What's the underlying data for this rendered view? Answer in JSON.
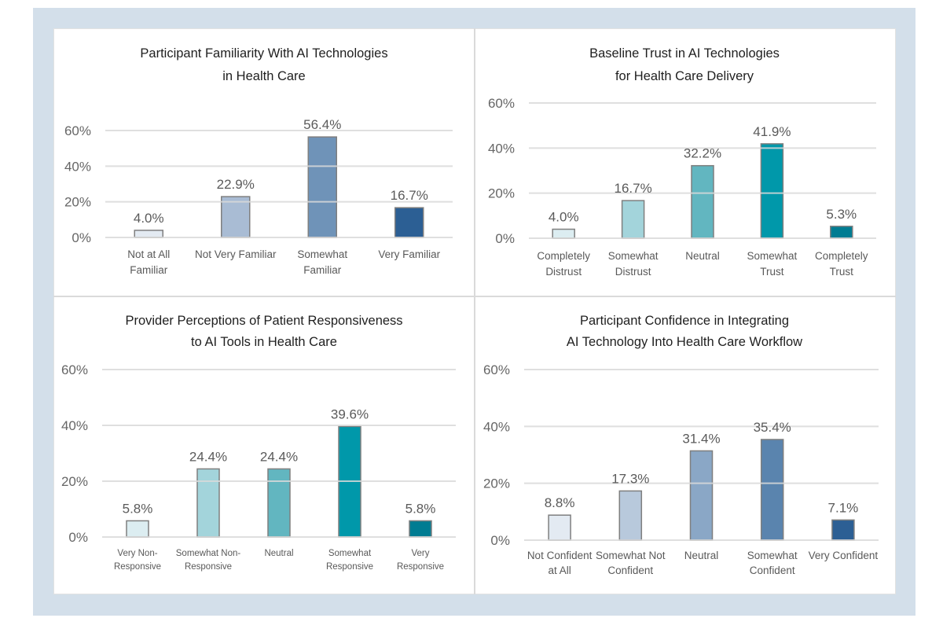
{
  "chart_data": [
    {
      "type": "bar",
      "title": [
        "Participant Familiarity With AI Technologies",
        "in Health Care"
      ],
      "categories": [
        [
          "Not at All",
          "Familiar"
        ],
        [
          "Not Very Familiar"
        ],
        [
          "Somewhat",
          "Familiar"
        ],
        [
          "Very Familiar"
        ]
      ],
      "values": [
        4.0,
        22.9,
        56.4,
        16.7
      ],
      "data_labels": [
        "4.0%",
        "22.9%",
        "56.4%",
        "16.7%"
      ],
      "colors": [
        "#e3eaf2",
        "#a9bcd4",
        "#6f93b8",
        "#2c5f94"
      ],
      "yticks": [
        "0%",
        "20%",
        "40%",
        "60%"
      ],
      "ylim": [
        0,
        60
      ],
      "xlabel": "",
      "ylabel": "",
      "grid": true,
      "legend": "none"
    },
    {
      "type": "bar",
      "title": [
        "Baseline Trust in AI Technologies",
        "for Health Care Delivery"
      ],
      "categories": [
        [
          "Completely",
          "Distrust"
        ],
        [
          "Somewhat",
          "Distrust"
        ],
        [
          "Neutral"
        ],
        [
          "Somewhat",
          "Trust"
        ],
        [
          "Completely",
          "Trust"
        ]
      ],
      "values": [
        4.0,
        16.7,
        32.2,
        41.9,
        5.3
      ],
      "data_labels": [
        "4.0%",
        "16.7%",
        "32.2%",
        "41.9%",
        "5.3%"
      ],
      "colors": [
        "#dcedf1",
        "#a3d4db",
        "#62b6c0",
        "#0098aa",
        "#007c92"
      ],
      "yticks": [
        "0%",
        "20%",
        "40%",
        "60%"
      ],
      "ylim": [
        0,
        60
      ],
      "xlabel": "",
      "ylabel": "",
      "grid": true,
      "legend": "none"
    },
    {
      "type": "bar",
      "title": [
        "Provider Perceptions of Patient Responsiveness",
        "to AI Tools in Health Care"
      ],
      "categories": [
        [
          "Very Non-",
          "Responsive"
        ],
        [
          "Somewhat Non-",
          "Responsive"
        ],
        [
          "Neutral"
        ],
        [
          "Somewhat",
          "Responsive"
        ],
        [
          "Very",
          "Responsive"
        ]
      ],
      "values": [
        5.8,
        24.4,
        24.4,
        39.6,
        5.8
      ],
      "data_labels": [
        "5.8%",
        "24.4%",
        "24.4%",
        "39.6%",
        "5.8%"
      ],
      "colors": [
        "#dcedf1",
        "#a3d4db",
        "#62b6c0",
        "#0098aa",
        "#007c92"
      ],
      "yticks": [
        "0%",
        "20%",
        "40%",
        "60%"
      ],
      "ylim": [
        0,
        60
      ],
      "xlabel": "",
      "ylabel": "",
      "grid": true,
      "legend": "none"
    },
    {
      "type": "bar",
      "title": [
        "Participant Confidence in Integrating",
        "AI Technology Into Health Care Workflow"
      ],
      "categories": [
        [
          "Not Confident",
          "at All"
        ],
        [
          "Somewhat Not",
          "Confident"
        ],
        [
          "Neutral"
        ],
        [
          "Somewhat",
          "Confident"
        ],
        [
          "Very Confident"
        ]
      ],
      "values": [
        8.8,
        17.3,
        31.4,
        35.4,
        7.1
      ],
      "data_labels": [
        "8.8%",
        "17.3%",
        "31.4%",
        "35.4%",
        "7.1%"
      ],
      "colors": [
        "#e3eaf2",
        "#b8c9dc",
        "#8aa7c6",
        "#5a84ae",
        "#2c5f94"
      ],
      "yticks": [
        "0%",
        "20%",
        "40%",
        "60%"
      ],
      "ylim": [
        0,
        60
      ],
      "xlabel": "",
      "ylabel": "",
      "grid": true,
      "legend": "none"
    }
  ]
}
